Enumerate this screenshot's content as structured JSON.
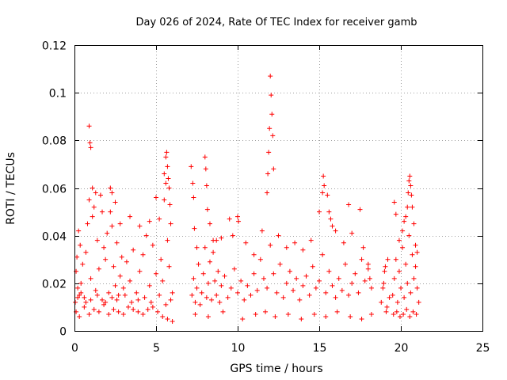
{
  "chart_data": {
    "type": "scatter",
    "title": "Day 026 of 2024, Rate Of TEC Index for receiver gamb",
    "xlabel": "GPS time / hours",
    "ylabel": "ROTI / TECUs",
    "xlim": [
      0,
      25
    ],
    "ylim": [
      0,
      0.12
    ],
    "xticks": [
      0,
      5,
      10,
      15,
      20,
      25
    ],
    "yticks": [
      0,
      0.02,
      0.04,
      0.06,
      0.08,
      0.1,
      0.12
    ],
    "xtick_labels": [
      "0",
      "5",
      "10",
      "15",
      "20",
      "25"
    ],
    "ytick_labels": [
      "0",
      "0.02",
      "0.04",
      "0.06",
      "0.08",
      "0.1",
      "0.12"
    ],
    "grid": true,
    "marker": "+",
    "color": "#ff0000",
    "series": [
      {
        "name": "ROTI",
        "x": [
          0.05,
          0.1,
          0.15,
          0.2,
          0.25,
          0.3,
          0.35,
          0.4,
          0.5,
          0.6,
          0.7,
          0.8,
          0.9,
          1.0,
          1.1,
          1.2,
          1.3,
          1.4,
          1.5,
          1.6,
          1.7,
          1.8,
          1.9,
          2.0,
          2.1,
          2.2,
          2.3,
          2.4,
          2.5,
          2.6,
          2.7,
          2.8,
          2.9,
          3.0,
          3.2,
          3.4,
          3.6,
          3.8,
          4.0,
          4.2,
          4.4,
          4.6,
          4.8,
          5.0,
          5.2,
          5.3,
          5.4,
          5.5,
          5.6,
          5.7,
          5.8,
          5.9,
          6.0,
          0.1,
          0.3,
          0.6,
          0.9,
          1.2,
          1.5,
          1.8,
          2.1,
          2.4,
          2.7,
          3.0,
          3.3,
          3.6,
          3.9,
          4.2,
          4.5,
          4.8,
          5.1,
          5.4,
          5.7,
          6.0,
          0.9,
          0.95,
          1.0,
          1.6,
          2.2,
          2.5,
          1.1,
          1.3,
          1.7,
          2.3,
          2.8,
          3.4,
          4.0,
          4.6,
          5.0,
          5.5,
          5.6,
          5.65,
          5.7,
          5.75,
          5.8,
          5.85,
          0.2,
          0.4,
          0.7,
          1.0,
          1.4,
          1.9,
          2.3,
          2.6,
          3.1,
          3.5,
          3.9,
          4.3,
          4.7,
          5.2,
          5.6,
          5.9,
          7.2,
          7.3,
          7.4,
          7.5,
          7.6,
          7.7,
          7.8,
          7.9,
          8.0,
          8.1,
          8.2,
          8.3,
          8.4,
          8.5,
          8.6,
          8.7,
          8.8,
          8.9,
          9.0,
          9.2,
          9.4,
          9.6,
          9.8,
          10.0,
          10.2,
          10.4,
          10.6,
          10.8,
          11.0,
          11.2,
          11.4,
          11.6,
          11.8,
          12.0,
          12.2,
          12.4,
          12.6,
          12.8,
          13.0,
          13.2,
          13.4,
          13.6,
          13.8,
          14.0,
          14.2,
          14.4,
          14.6,
          14.8,
          15.0,
          15.2,
          15.4,
          15.6,
          15.8,
          16.0,
          16.2,
          16.4,
          16.6,
          16.8,
          17.0,
          17.2,
          17.4,
          17.6,
          17.8,
          18.0,
          18.2,
          7.15,
          7.25,
          7.3,
          7.35,
          7.5,
          8.0,
          8.05,
          8.1,
          8.15,
          8.3,
          8.5,
          8.7,
          9.0,
          9.5,
          9.7,
          10.0,
          10.05,
          10.5,
          11.0,
          11.5,
          11.8,
          11.85,
          11.9,
          11.95,
          12.0,
          12.05,
          12.1,
          12.15,
          12.2,
          12.5,
          13.0,
          13.5,
          14.0,
          14.5,
          15.0,
          15.2,
          15.25,
          15.3,
          15.5,
          15.6,
          15.7,
          15.8,
          16.0,
          16.5,
          16.8,
          17.0,
          17.5,
          17.7,
          18.0,
          18.1,
          7.4,
          8.2,
          9.1,
          10.3,
          11.1,
          11.7,
          12.3,
          13.1,
          13.9,
          14.7,
          15.4,
          16.1,
          16.9,
          17.6,
          18.2,
          18.8,
          18.9,
          19.0,
          19.1,
          19.2,
          19.3,
          18.95,
          19.05,
          19.15,
          19.5,
          19.6,
          19.7,
          19.8,
          19.9,
          20.0,
          20.1,
          20.2,
          20.3,
          20.4,
          20.5,
          20.6,
          20.7,
          20.8,
          20.9,
          21.0,
          21.1,
          19.6,
          19.7,
          19.9,
          20.1,
          20.2,
          20.3,
          20.4,
          20.45,
          20.5,
          20.55,
          20.6,
          20.65,
          20.7,
          20.8,
          20.9,
          21.0,
          19.55,
          19.75,
          19.95,
          20.15,
          20.35,
          20.55,
          20.75,
          20.95
        ],
        "y": [
          0.012,
          0.025,
          0.031,
          0.018,
          0.042,
          0.015,
          0.036,
          0.02,
          0.028,
          0.014,
          0.033,
          0.045,
          0.055,
          0.022,
          0.048,
          0.052,
          0.017,
          0.038,
          0.026,
          0.057,
          0.013,
          0.035,
          0.03,
          0.041,
          0.016,
          0.05,
          0.044,
          0.027,
          0.019,
          0.037,
          0.015,
          0.023,
          0.031,
          0.018,
          0.029,
          0.021,
          0.034,
          0.016,
          0.025,
          0.032,
          0.04,
          0.019,
          0.036,
          0.024,
          0.047,
          0.03,
          0.021,
          0.055,
          0.062,
          0.038,
          0.027,
          0.045,
          0.016,
          0.008,
          0.006,
          0.01,
          0.007,
          0.009,
          0.008,
          0.011,
          0.007,
          0.009,
          0.008,
          0.007,
          0.01,
          0.009,
          0.008,
          0.007,
          0.009,
          0.01,
          0.008,
          0.006,
          0.005,
          0.004,
          0.086,
          0.079,
          0.077,
          0.057,
          0.06,
          0.054,
          0.06,
          0.058,
          0.05,
          0.058,
          0.045,
          0.048,
          0.044,
          0.046,
          0.056,
          0.066,
          0.073,
          0.075,
          0.069,
          0.064,
          0.06,
          0.053,
          0.014,
          0.016,
          0.012,
          0.013,
          0.015,
          0.012,
          0.014,
          0.013,
          0.015,
          0.012,
          0.013,
          0.014,
          0.012,
          0.015,
          0.011,
          0.013,
          0.015,
          0.022,
          0.012,
          0.018,
          0.028,
          0.011,
          0.016,
          0.024,
          0.035,
          0.014,
          0.02,
          0.029,
          0.013,
          0.038,
          0.021,
          0.015,
          0.025,
          0.012,
          0.019,
          0.023,
          0.014,
          0.018,
          0.026,
          0.016,
          0.021,
          0.013,
          0.019,
          0.015,
          0.024,
          0.017,
          0.03,
          0.022,
          0.018,
          0.036,
          0.024,
          0.016,
          0.028,
          0.014,
          0.02,
          0.025,
          0.017,
          0.022,
          0.013,
          0.019,
          0.023,
          0.015,
          0.027,
          0.018,
          0.021,
          0.032,
          0.016,
          0.025,
          0.019,
          0.014,
          0.022,
          0.017,
          0.028,
          0.015,
          0.02,
          0.024,
          0.016,
          0.03,
          0.021,
          0.026,
          0.018,
          0.069,
          0.062,
          0.056,
          0.043,
          0.035,
          0.073,
          0.068,
          0.061,
          0.051,
          0.045,
          0.033,
          0.038,
          0.039,
          0.047,
          0.04,
          0.048,
          0.046,
          0.037,
          0.032,
          0.042,
          0.058,
          0.066,
          0.075,
          0.085,
          0.107,
          0.099,
          0.091,
          0.082,
          0.068,
          0.04,
          0.035,
          0.037,
          0.034,
          0.038,
          0.05,
          0.058,
          0.065,
          0.061,
          0.057,
          0.05,
          0.047,
          0.044,
          0.042,
          0.037,
          0.053,
          0.041,
          0.051,
          0.035,
          0.028,
          0.022,
          0.007,
          0.006,
          0.008,
          0.005,
          0.007,
          0.008,
          0.006,
          0.007,
          0.005,
          0.007,
          0.006,
          0.008,
          0.006,
          0.005,
          0.007,
          0.012,
          0.018,
          0.025,
          0.008,
          0.03,
          0.014,
          0.02,
          0.027,
          0.01,
          0.015,
          0.022,
          0.03,
          0.012,
          0.025,
          0.018,
          0.035,
          0.014,
          0.028,
          0.02,
          0.04,
          0.016,
          0.032,
          0.022,
          0.027,
          0.018,
          0.012,
          0.054,
          0.049,
          0.038,
          0.042,
          0.046,
          0.048,
          0.052,
          0.058,
          0.063,
          0.065,
          0.061,
          0.057,
          0.052,
          0.045,
          0.036,
          0.033,
          0.007,
          0.008,
          0.006,
          0.007,
          0.009,
          0.006,
          0.008,
          0.007
        ]
      }
    ]
  }
}
